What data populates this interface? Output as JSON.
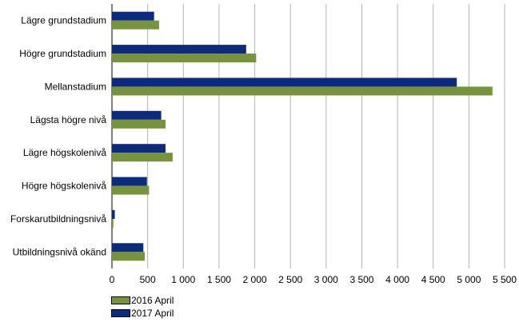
{
  "chart_data": {
    "type": "bar",
    "orientation": "horizontal",
    "categories": [
      "Lägre grundstadium",
      "Högre grundstadium",
      "Mellanstadium",
      "Lägsta högre nivå",
      "Lägre högskolenivå",
      "Högre högskolenivå",
      "Forskarutbildningsnivå",
      "Utbildningsnivå okänd"
    ],
    "series": [
      {
        "name": "2017 April",
        "color": "#0d2b7e",
        "values": [
          590,
          1880,
          4830,
          690,
          750,
          490,
          40,
          440
        ]
      },
      {
        "name": "2016 April",
        "color": "#77933c",
        "values": [
          660,
          2020,
          5330,
          750,
          850,
          520,
          20,
          460
        ]
      }
    ],
    "xlim": [
      0,
      5500
    ],
    "xticks": [
      0,
      500,
      1000,
      1500,
      2000,
      2500,
      3000,
      3500,
      4000,
      4500,
      5000,
      5500
    ],
    "xtick_labels": [
      "0",
      "500",
      "1 000",
      "1 500",
      "2 000",
      "2 500",
      "3 000",
      "3 500",
      "4 000",
      "4 500",
      "5 000",
      "5 500"
    ],
    "grid": "vertical",
    "legend_position": "bottom-left"
  },
  "legend": [
    {
      "label": "2016 April",
      "color": "#77933c"
    },
    {
      "label": "2017 April",
      "color": "#0d2b7e"
    }
  ]
}
